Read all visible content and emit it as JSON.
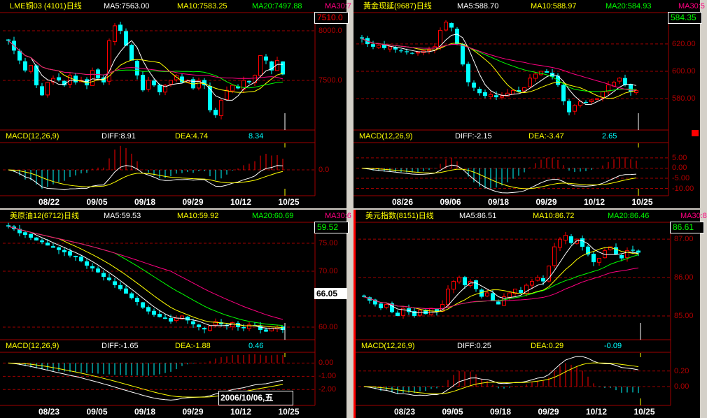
{
  "colors": {
    "up": "#ff0000",
    "down": "#00ffff",
    "ma5": "#ffffff",
    "ma10": "#ffff00",
    "ma20": "#00ff00",
    "ma30": "#ff0080",
    "grid": "#a00000"
  },
  "panels": [
    {
      "title": "LME铜03 (4101)日线",
      "ma5": "MA5:7563.00",
      "ma10": "MA10:7583.25",
      "ma20": "MA20:7497.88",
      "ma30": "MA30:7",
      "price_box": "7510.0",
      "price_box_color": "#ff0000",
      "price_axis": {
        "min": 7000,
        "max": 8183,
        "ticks": [
          "8000.0",
          "7500.0"
        ],
        "tick_values": [
          8000,
          7500
        ]
      },
      "closes": [
        7900,
        7800,
        7700,
        7600,
        7650,
        7450,
        7350,
        7480,
        7520,
        7500,
        7450,
        7550,
        7480,
        7500,
        7450,
        7600,
        7520,
        7480,
        7900,
        8050,
        8000,
        7850,
        7700,
        7550,
        7400,
        7500,
        7450,
        7380,
        7450,
        7500,
        7550,
        7480,
        7500,
        7420,
        7500,
        7450,
        7200,
        7150,
        7300,
        7400,
        7450,
        7420,
        7500,
        7480,
        7550,
        7750,
        7700,
        7600,
        7700,
        7560
      ],
      "macd": {
        "label": "MACD(12,26,9)",
        "diff": "DIFF:8.91",
        "dea": "DEA:4.74",
        "value": "8.34",
        "min": -37,
        "max": 38,
        "ticks": [
          "0.0"
        ],
        "tick_values": [
          0
        ]
      },
      "dates": [
        "08/22",
        "09/05",
        "09/18",
        "09/29",
        "10/12",
        "10/25"
      ]
    },
    {
      "title": "黃金现延(9687)日线",
      "ma5": "MA5:588.70",
      "ma10": "MA10:588.97",
      "ma20": "MA20:584.93",
      "ma30": "MA30:5",
      "price_box": "584.35",
      "price_box_color": "#00ff00",
      "price_axis": {
        "min": 557,
        "max": 643,
        "ticks": [
          "620.00",
          "600.00",
          "580.00"
        ],
        "tick_values": [
          620,
          600,
          580
        ]
      },
      "closes": [
        624,
        620,
        618,
        619,
        617,
        618,
        616,
        615,
        614,
        613,
        614,
        615,
        616,
        618,
        630,
        636,
        632,
        620,
        605,
        592,
        588,
        584,
        582,
        583,
        581,
        582,
        584,
        586,
        585,
        588,
        595,
        598,
        600,
        599,
        596,
        590,
        578,
        570,
        575,
        578,
        577,
        579,
        580,
        585,
        590,
        592,
        595,
        590,
        585,
        586
      ],
      "macd": {
        "label": "MACD(12,26,9)",
        "diff": "DIFF:-2.15",
        "dea": "DEA:-3.47",
        "value": "2.65",
        "min": -13.6,
        "max": 12.2,
        "ticks": [
          "5.00",
          "0.00",
          "-5.00",
          "-10.00"
        ],
        "tick_values": [
          5,
          0,
          -5,
          -10
        ]
      },
      "dates": [
        "08/26",
        "09/06",
        "09/18",
        "09/29",
        "10/12",
        "10/25"
      ]
    },
    {
      "title": "美原油12(6712)日线",
      "ma5": "MA5:59.53",
      "ma10": "MA10:59.92",
      "ma20": "MA20:60.69",
      "ma30": "MA30:6",
      "price_box": "59.52",
      "price_box_color": "#00ff00",
      "price_axis": {
        "min": 57.75,
        "max": 78.75,
        "ticks": [
          "75.00",
          "70.00",
          "60.00"
        ],
        "tick_values": [
          75,
          70,
          60
        ]
      },
      "highlight_price": "66.05",
      "closes": [
        78,
        77.5,
        76.8,
        76.5,
        76,
        75.5,
        75.2,
        74.6,
        74.2,
        73.8,
        73.4,
        72.8,
        72.5,
        71.8,
        71,
        70.5,
        69.8,
        69,
        68.4,
        67.5,
        66.8,
        66,
        65.2,
        64.5,
        63.5,
        62.8,
        62.2,
        61.8,
        61.5,
        61,
        61.6,
        62,
        61.2,
        60.5,
        60,
        59.6,
        60.2,
        61,
        60.5,
        60.2,
        60.8,
        60,
        59.8,
        60.4,
        60.2,
        59.5,
        59.2,
        59.8,
        60,
        59.5
      ],
      "macd": {
        "label": "MACD(12,26,9)",
        "diff": "DIFF:-1.65",
        "dea": "DEA:-1.88",
        "value": "0.46",
        "min": -3.2,
        "max": 0.76,
        "ticks": [
          "0.00",
          "-1.00",
          "-2.00"
        ],
        "tick_values": [
          0,
          -1,
          -2
        ]
      },
      "dates": [
        "08/23",
        "09/05",
        "09/18",
        "09/29",
        "10/12",
        "10/25"
      ],
      "tooltip": "2006/10/06,五"
    },
    {
      "title": "美元指数(8151)日线",
      "ma5": "MA5:86.51",
      "ma10": "MA10:86.72",
      "ma20": "MA20:86.46",
      "ma30": "MA30:8",
      "price_box": "86.61",
      "price_box_color": "#00ff00",
      "price_axis": {
        "min": 84.38,
        "max": 87.44,
        "ticks": [
          "87.00",
          "86.00",
          "85.00"
        ],
        "tick_values": [
          87,
          86,
          85
        ]
      },
      "closes": [
        85.5,
        85.4,
        85.3,
        85.2,
        85.3,
        85.1,
        85.0,
        85.2,
        85.1,
        85.0,
        85.15,
        85.05,
        85.2,
        85.1,
        85.3,
        85.7,
        85.9,
        86.0,
        85.8,
        85.9,
        85.7,
        85.5,
        85.6,
        85.4,
        85.3,
        85.5,
        85.6,
        85.7,
        85.6,
        85.8,
        85.9,
        86.0,
        85.9,
        86.3,
        86.8,
        87.0,
        87.1,
        86.9,
        87.0,
        86.8,
        86.6,
        86.4,
        86.5,
        86.7,
        86.8,
        86.6,
        86.5,
        86.7,
        86.7,
        86.65
      ],
      "macd": {
        "label": "MACD(12,26,9)",
        "diff": "DIFF:0.25",
        "dea": "DEA:0.29",
        "value": "-0.09",
        "min": -0.24,
        "max": 0.43,
        "ticks": [
          "0.20",
          "0.00"
        ],
        "tick_values": [
          0.2,
          0
        ]
      },
      "dates": [
        "08/23",
        "09/05",
        "09/18",
        "09/29",
        "10/12",
        "10/25"
      ]
    }
  ]
}
